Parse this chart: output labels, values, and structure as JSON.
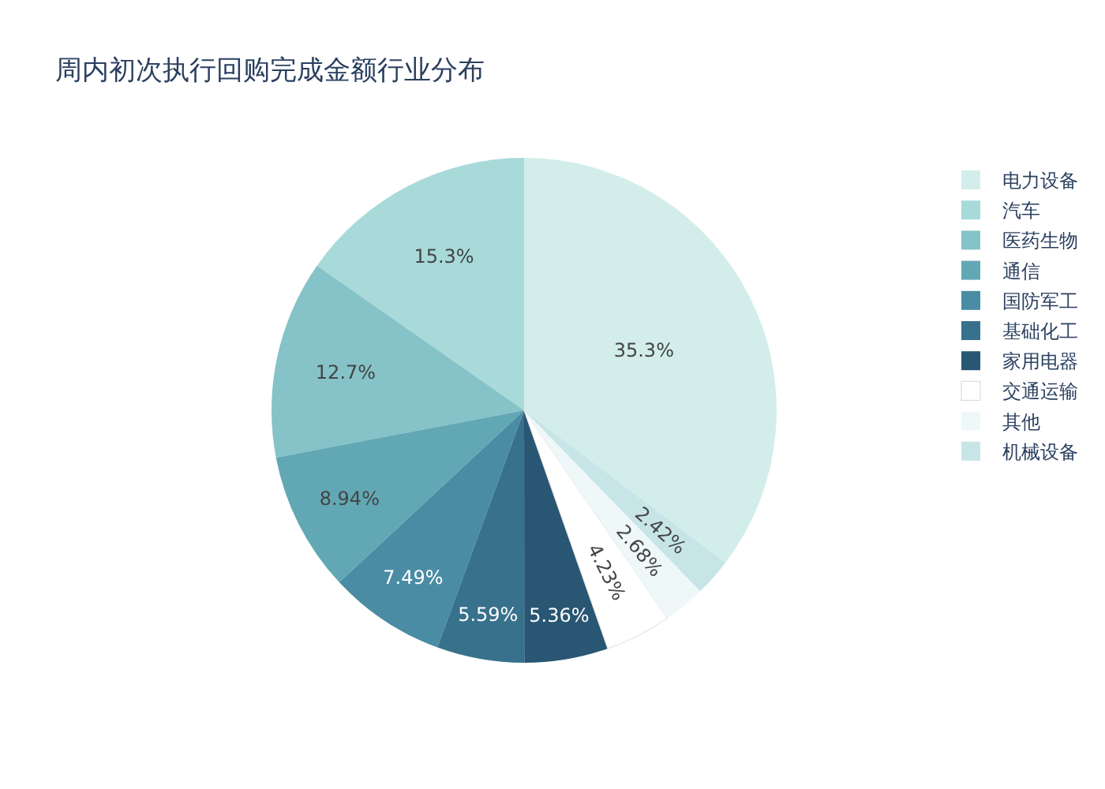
{
  "chart_data": {
    "type": "pie",
    "title": "周内初次执行回购完成金额行业分布",
    "categories": [
      "电力设备",
      "汽车",
      "医药生物",
      "通信",
      "国防军工",
      "基础化工",
      "家用电器",
      "交通运输",
      "其他",
      "机械设备"
    ],
    "values": [
      35.3,
      15.3,
      12.7,
      8.94,
      7.49,
      5.59,
      5.36,
      4.23,
      2.68,
      2.42
    ],
    "value_labels": [
      "35.3%",
      "15.3%",
      "12.7%",
      "8.94%",
      "7.49%",
      "5.59%",
      "5.36%",
      "4.23%",
      "2.68%",
      "2.42%"
    ],
    "colors": [
      "#d3eeea",
      "#a8dada",
      "#85c3c8",
      "#62a8b4",
      "#4a8ca3",
      "#38718c",
      "#285673",
      "#ffffff",
      "#eef8f9",
      "#c7e5e6"
    ],
    "legend": "right"
  }
}
